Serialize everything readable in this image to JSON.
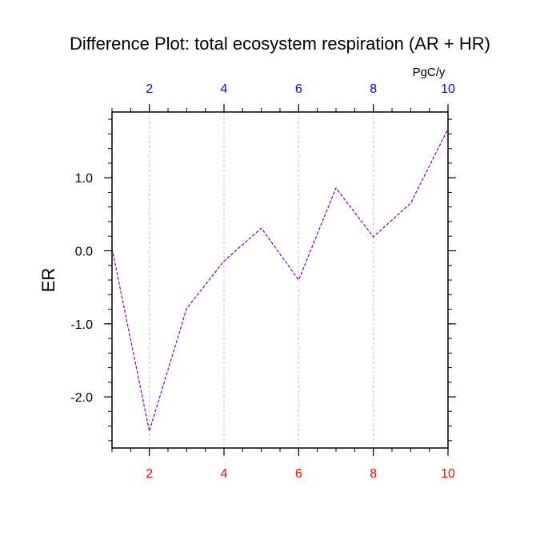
{
  "chart_data": {
    "type": "line",
    "title": "Difference Plot: total ecosystem respiration (AR + HR)",
    "ylabel": "ER",
    "top_axis_unit": "PgC/y",
    "xlim": [
      1,
      10
    ],
    "ylim": [
      -2.7,
      1.9
    ],
    "x_ticks": [
      "2",
      "4",
      "6",
      "8",
      "10"
    ],
    "y_ticks": [
      "1.0",
      "0.0",
      "-1.0",
      "-2.0"
    ],
    "grid": "vertical-dashed",
    "colors": {
      "line": "#7a00cc",
      "bottom_ticks": "#ff0000",
      "top_ticks": "#0000ff",
      "grid": "#bbbbbb"
    },
    "series": [
      {
        "x": [
          1,
          2,
          3,
          4,
          5,
          6,
          7,
          8,
          9,
          10
        ],
        "values": [
          0.03,
          -2.47,
          -0.79,
          -0.14,
          0.31,
          -0.4,
          0.86,
          0.19,
          0.65,
          1.67
        ]
      }
    ]
  }
}
